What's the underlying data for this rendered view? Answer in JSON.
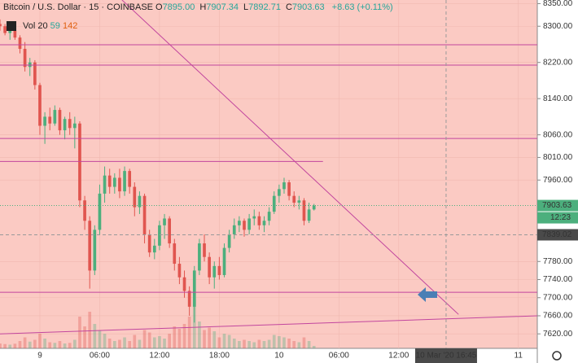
{
  "header": {
    "title": "Bitcoin / U.S. Dollar · 15 · COINBASE",
    "legend": [
      {
        "key": "O",
        "value": "7895.00"
      },
      {
        "key": "H",
        "value": "7907.34"
      },
      {
        "key": "L",
        "value": "7892.71"
      },
      {
        "key": "C",
        "value": "7903.63"
      }
    ],
    "change": "+8.63 (+0.11%)",
    "volume_label": "Vol 20",
    "volume_values": [
      59,
      142
    ]
  },
  "chart_data": {
    "type": "candlestick",
    "xlim": [
      -4,
      49.9
    ],
    "ylim": [
      7588,
      8358
    ],
    "grid": true,
    "xticks": [
      {
        "value": 0,
        "label": "9"
      },
      {
        "value": 6,
        "label": "06:00"
      },
      {
        "value": 12,
        "label": "12:00"
      },
      {
        "value": 18,
        "label": "18:00"
      },
      {
        "value": 24,
        "label": "10"
      },
      {
        "value": 30,
        "label": "06:00"
      },
      {
        "value": 36,
        "label": "12:00"
      },
      {
        "value": 48,
        "label": "11"
      }
    ],
    "yticks": [
      {
        "value": 8350,
        "label": "8350.00"
      },
      {
        "value": 8300,
        "label": "8300.00"
      },
      {
        "value": 8220,
        "label": "8220.00"
      },
      {
        "value": 8140,
        "label": "8140.00"
      },
      {
        "value": 8060,
        "label": "8060.00"
      },
      {
        "value": 8010,
        "label": "8010.00"
      },
      {
        "value": 7960,
        "label": "7960.00"
      },
      {
        "value": 7780,
        "label": "7780.00"
      },
      {
        "value": 7740,
        "label": "7740.00"
      },
      {
        "value": 7700,
        "label": "7700.00"
      },
      {
        "value": 7660,
        "label": "7660.00"
      },
      {
        "value": 7620,
        "label": "7620.00"
      }
    ],
    "x": [
      -4,
      -3.5,
      -3,
      -2.5,
      -2,
      -1.5,
      -1,
      -0.5,
      0,
      0.5,
      1,
      1.5,
      2,
      2.5,
      3,
      3.5,
      4,
      4.5,
      5,
      5.5,
      6,
      6.5,
      7,
      7.5,
      8,
      8.5,
      9,
      9.5,
      10,
      10.5,
      11,
      11.5,
      12,
      12.5,
      13,
      13.5,
      14,
      14.5,
      15,
      15.5,
      16,
      16.5,
      17,
      17.5,
      18,
      18.5,
      19,
      19.5,
      20,
      20.5,
      21,
      21.5,
      22,
      22.5,
      23,
      23.5,
      24,
      24.5,
      25,
      25.5,
      26,
      26.5,
      27,
      27.5
    ],
    "open": [
      8305,
      8300,
      8285,
      8290,
      8275,
      8250,
      8210,
      8220,
      8170,
      8080,
      8100,
      8085,
      8115,
      8070,
      8095,
      8075,
      8085,
      7915,
      7870,
      7760,
      7850,
      7930,
      7970,
      7945,
      7965,
      7935,
      7980,
      7945,
      7900,
      7925,
      7840,
      7800,
      7815,
      7860,
      7875,
      7820,
      7775,
      7745,
      7715,
      7680,
      7760,
      7820,
      7790,
      7745,
      7770,
      7750,
      7810,
      7840,
      7860,
      7870,
      7850,
      7875,
      7880,
      7860,
      7870,
      7890,
      7925,
      7940,
      7955,
      7925,
      7910,
      7915,
      7870,
      7895
    ],
    "high": [
      8315,
      8305,
      8295,
      8300,
      8280,
      8265,
      8230,
      8225,
      8175,
      8110,
      8120,
      8125,
      8120,
      8100,
      8110,
      8100,
      8090,
      7925,
      7880,
      7860,
      7950,
      7990,
      7985,
      7975,
      7985,
      7990,
      7985,
      7955,
      7935,
      7930,
      7850,
      7830,
      7870,
      7885,
      7880,
      7830,
      7790,
      7760,
      7725,
      7770,
      7830,
      7840,
      7800,
      7780,
      7790,
      7820,
      7850,
      7875,
      7880,
      7875,
      7885,
      7895,
      7890,
      7880,
      7900,
      7935,
      7950,
      7965,
      7960,
      7935,
      7925,
      7920,
      7910,
      7907.34
    ],
    "low": [
      8290,
      8280,
      8270,
      8270,
      8240,
      8200,
      8190,
      8160,
      8060,
      8040,
      8070,
      8080,
      8060,
      8050,
      8060,
      8030,
      7900,
      7850,
      7720,
      7750,
      7840,
      7910,
      7930,
      7930,
      7920,
      7925,
      7930,
      7880,
      7885,
      7820,
      7790,
      7785,
      7805,
      7830,
      7810,
      7760,
      7730,
      7700,
      7660,
      7645,
      7750,
      7780,
      7730,
      7720,
      7740,
      7745,
      7800,
      7830,
      7845,
      7835,
      7840,
      7860,
      7850,
      7845,
      7860,
      7885,
      7910,
      7930,
      7915,
      7900,
      7895,
      7860,
      7865,
      7892.71
    ],
    "close": [
      8300,
      8285,
      8290,
      8275,
      8250,
      8210,
      8220,
      8170,
      8080,
      8100,
      8085,
      8115,
      8070,
      8095,
      8075,
      8085,
      7915,
      7870,
      7760,
      7850,
      7930,
      7970,
      7945,
      7965,
      7935,
      7980,
      7945,
      7900,
      7925,
      7840,
      7800,
      7815,
      7860,
      7875,
      7820,
      7775,
      7745,
      7715,
      7680,
      7760,
      7820,
      7790,
      7745,
      7770,
      7750,
      7810,
      7840,
      7860,
      7870,
      7850,
      7875,
      7880,
      7860,
      7870,
      7890,
      7925,
      7940,
      7955,
      7925,
      7910,
      7915,
      7870,
      7895,
      7903.63
    ],
    "volume": [
      40,
      35,
      30,
      38,
      60,
      90,
      55,
      70,
      120,
      80,
      50,
      45,
      60,
      40,
      45,
      70,
      260,
      180,
      300,
      200,
      150,
      120,
      80,
      60,
      70,
      90,
      60,
      110,
      70,
      150,
      130,
      90,
      100,
      80,
      120,
      180,
      160,
      200,
      260,
      400,
      220,
      150,
      170,
      140,
      90,
      120,
      110,
      80,
      60,
      70,
      60,
      50,
      70,
      60,
      70,
      110,
      100,
      90,
      80,
      60,
      50,
      90,
      60,
      20
    ],
    "up_color": "#4caf7d",
    "down_color": "#e0554f",
    "line_color": "#c2469e",
    "levels": [
      8259,
      8214,
      8052,
      7712
    ],
    "level_segment": {
      "value": 8001,
      "x": [
        -4,
        28.4
      ]
    },
    "trend_lines": [
      {
        "x": [
          8.24,
          42
        ],
        "y": [
          8358,
          7663
        ]
      },
      {
        "x": [
          -4,
          49.9
        ],
        "y": [
          7620,
          7660
        ]
      }
    ],
    "last_price": 7903.63,
    "countdown": "12:23",
    "crosshair": {
      "x": 40.75,
      "y": 7839.02,
      "x_label": "10 Mar '20   16:45"
    }
  }
}
